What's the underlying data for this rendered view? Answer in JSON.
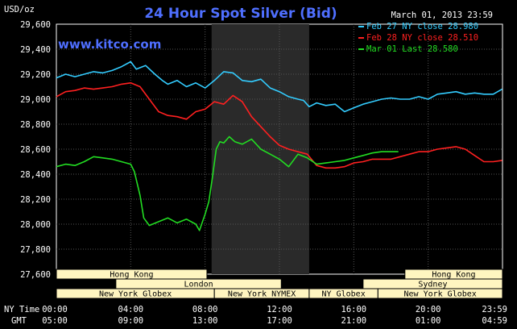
{
  "chart_data": {
    "type": "line",
    "title": "24 Hour Spot Silver (Bid)",
    "brand": "www.kitco.com",
    "date_label": "March 01, 2013 23:59",
    "unit_label": "USD/oz",
    "ylim": [
      27600,
      29600
    ],
    "y_ticks": [
      "29,600",
      "29,400",
      "29,200",
      "29,000",
      "28,800",
      "28,600",
      "28,400",
      "28,200",
      "28,000",
      "27,800",
      "27,600"
    ],
    "x_row_labels": {
      "ny": "NY Time",
      "gmt": "GMT"
    },
    "x_ticks_ny": [
      "00:00",
      "04:00",
      "08:00",
      "12:00",
      "16:00",
      "20:00",
      "23:59"
    ],
    "x_ticks_gmt": [
      "05:00",
      "09:00",
      "13:00",
      "17:00",
      "21:00",
      "01:00",
      "04:59"
    ],
    "grid": true,
    "legend_position": "top-right",
    "series": [
      {
        "name": "Feb 27 NY close 28.980",
        "color": "#33ccff",
        "points": [
          [
            0,
            29170
          ],
          [
            0.5,
            29200
          ],
          [
            1,
            29180
          ],
          [
            1.5,
            29200
          ],
          [
            2,
            29220
          ],
          [
            2.5,
            29210
          ],
          [
            3,
            29230
          ],
          [
            3.5,
            29260
          ],
          [
            4,
            29300
          ],
          [
            4.3,
            29240
          ],
          [
            4.8,
            29270
          ],
          [
            5.3,
            29200
          ],
          [
            5.7,
            29150
          ],
          [
            6,
            29120
          ],
          [
            6.5,
            29150
          ],
          [
            7,
            29100
          ],
          [
            7.5,
            29130
          ],
          [
            8,
            29090
          ],
          [
            8.5,
            29150
          ],
          [
            9,
            29220
          ],
          [
            9.5,
            29210
          ],
          [
            10,
            29150
          ],
          [
            10.5,
            29140
          ],
          [
            11,
            29160
          ],
          [
            11.5,
            29090
          ],
          [
            12,
            29060
          ],
          [
            12.5,
            29020
          ],
          [
            13,
            29000
          ],
          [
            13.3,
            28990
          ],
          [
            13.6,
            28940
          ],
          [
            14,
            28970
          ],
          [
            14.5,
            28950
          ],
          [
            15,
            28960
          ],
          [
            15.5,
            28900
          ],
          [
            16,
            28930
          ],
          [
            16.5,
            28960
          ],
          [
            17,
            28980
          ],
          [
            17.5,
            29000
          ],
          [
            18,
            29010
          ],
          [
            18.5,
            29000
          ],
          [
            19,
            29000
          ],
          [
            19.5,
            29020
          ],
          [
            20,
            29000
          ],
          [
            20.5,
            29040
          ],
          [
            21,
            29050
          ],
          [
            21.5,
            29060
          ],
          [
            22,
            29040
          ],
          [
            22.5,
            29050
          ],
          [
            23,
            29040
          ],
          [
            23.5,
            29040
          ],
          [
            23.98,
            29080
          ]
        ]
      },
      {
        "name": "Feb 28 NY close 28.510",
        "color": "#ff2020",
        "points": [
          [
            0,
            29020
          ],
          [
            0.5,
            29060
          ],
          [
            1,
            29070
          ],
          [
            1.5,
            29090
          ],
          [
            2,
            29080
          ],
          [
            2.5,
            29090
          ],
          [
            3,
            29100
          ],
          [
            3.5,
            29120
          ],
          [
            4,
            29130
          ],
          [
            4.5,
            29100
          ],
          [
            5,
            29000
          ],
          [
            5.5,
            28900
          ],
          [
            6,
            28870
          ],
          [
            6.5,
            28860
          ],
          [
            7,
            28840
          ],
          [
            7.5,
            28900
          ],
          [
            8,
            28920
          ],
          [
            8.5,
            28980
          ],
          [
            9,
            28960
          ],
          [
            9.5,
            29030
          ],
          [
            10,
            28980
          ],
          [
            10.5,
            28860
          ],
          [
            11,
            28780
          ],
          [
            11.5,
            28700
          ],
          [
            12,
            28630
          ],
          [
            12.5,
            28600
          ],
          [
            13,
            28580
          ],
          [
            13.5,
            28560
          ],
          [
            14,
            28470
          ],
          [
            14.5,
            28450
          ],
          [
            15,
            28450
          ],
          [
            15.5,
            28460
          ],
          [
            16,
            28490
          ],
          [
            16.5,
            28500
          ],
          [
            17,
            28520
          ],
          [
            17.5,
            28520
          ],
          [
            18,
            28520
          ],
          [
            18.5,
            28540
          ],
          [
            19,
            28560
          ],
          [
            19.5,
            28580
          ],
          [
            20,
            28580
          ],
          [
            20.5,
            28600
          ],
          [
            21,
            28610
          ],
          [
            21.5,
            28620
          ],
          [
            22,
            28600
          ],
          [
            22.5,
            28550
          ],
          [
            23,
            28500
          ],
          [
            23.5,
            28500
          ],
          [
            23.98,
            28510
          ]
        ]
      },
      {
        "name": "Mar 01 Last 28.580",
        "color": "#22dd22",
        "points": [
          [
            0,
            28460
          ],
          [
            0.5,
            28480
          ],
          [
            1,
            28470
          ],
          [
            1.5,
            28500
          ],
          [
            2,
            28540
          ],
          [
            2.5,
            28530
          ],
          [
            3,
            28520
          ],
          [
            3.5,
            28500
          ],
          [
            4,
            28480
          ],
          [
            4.2,
            28420
          ],
          [
            4.5,
            28230
          ],
          [
            4.7,
            28050
          ],
          [
            5,
            27990
          ],
          [
            5.5,
            28020
          ],
          [
            6,
            28050
          ],
          [
            6.5,
            28010
          ],
          [
            7,
            28040
          ],
          [
            7.5,
            28000
          ],
          [
            7.7,
            27950
          ],
          [
            8,
            28080
          ],
          [
            8.2,
            28180
          ],
          [
            8.4,
            28380
          ],
          [
            8.6,
            28600
          ],
          [
            8.8,
            28660
          ],
          [
            9,
            28650
          ],
          [
            9.3,
            28700
          ],
          [
            9.6,
            28660
          ],
          [
            10,
            28640
          ],
          [
            10.5,
            28680
          ],
          [
            11,
            28600
          ],
          [
            11.5,
            28560
          ],
          [
            12,
            28520
          ],
          [
            12.5,
            28460
          ],
          [
            13,
            28560
          ],
          [
            13.5,
            28530
          ],
          [
            14,
            28480
          ],
          [
            14.5,
            28490
          ],
          [
            15,
            28500
          ],
          [
            15.5,
            28510
          ],
          [
            16,
            28530
          ],
          [
            16.5,
            28550
          ],
          [
            17,
            28570
          ],
          [
            17.5,
            28580
          ],
          [
            18,
            28580
          ],
          [
            18.4,
            28580
          ]
        ]
      }
    ],
    "sessions": {
      "row1": [
        {
          "label": "Hong Kong",
          "from": 0,
          "to": 8.1
        },
        {
          "label": "Hong Kong",
          "from": 18.75,
          "to": 24
        }
      ],
      "row2": [
        {
          "label": "London",
          "from": 3.2,
          "to": 12.1
        },
        {
          "label": "Sydney",
          "from": 16.5,
          "to": 24
        }
      ],
      "row3": [
        {
          "label": "New York Globex",
          "from": 0,
          "to": 8.5
        },
        {
          "label": "New York NYMEX",
          "from": 8.5,
          "to": 13.6
        },
        {
          "label": "NY Globex",
          "from": 13.6,
          "to": 17.3
        },
        {
          "label": "New York Globex",
          "from": 17.3,
          "to": 24
        }
      ]
    },
    "highlight_session": {
      "from": 8.35,
      "to": 13.6
    }
  }
}
